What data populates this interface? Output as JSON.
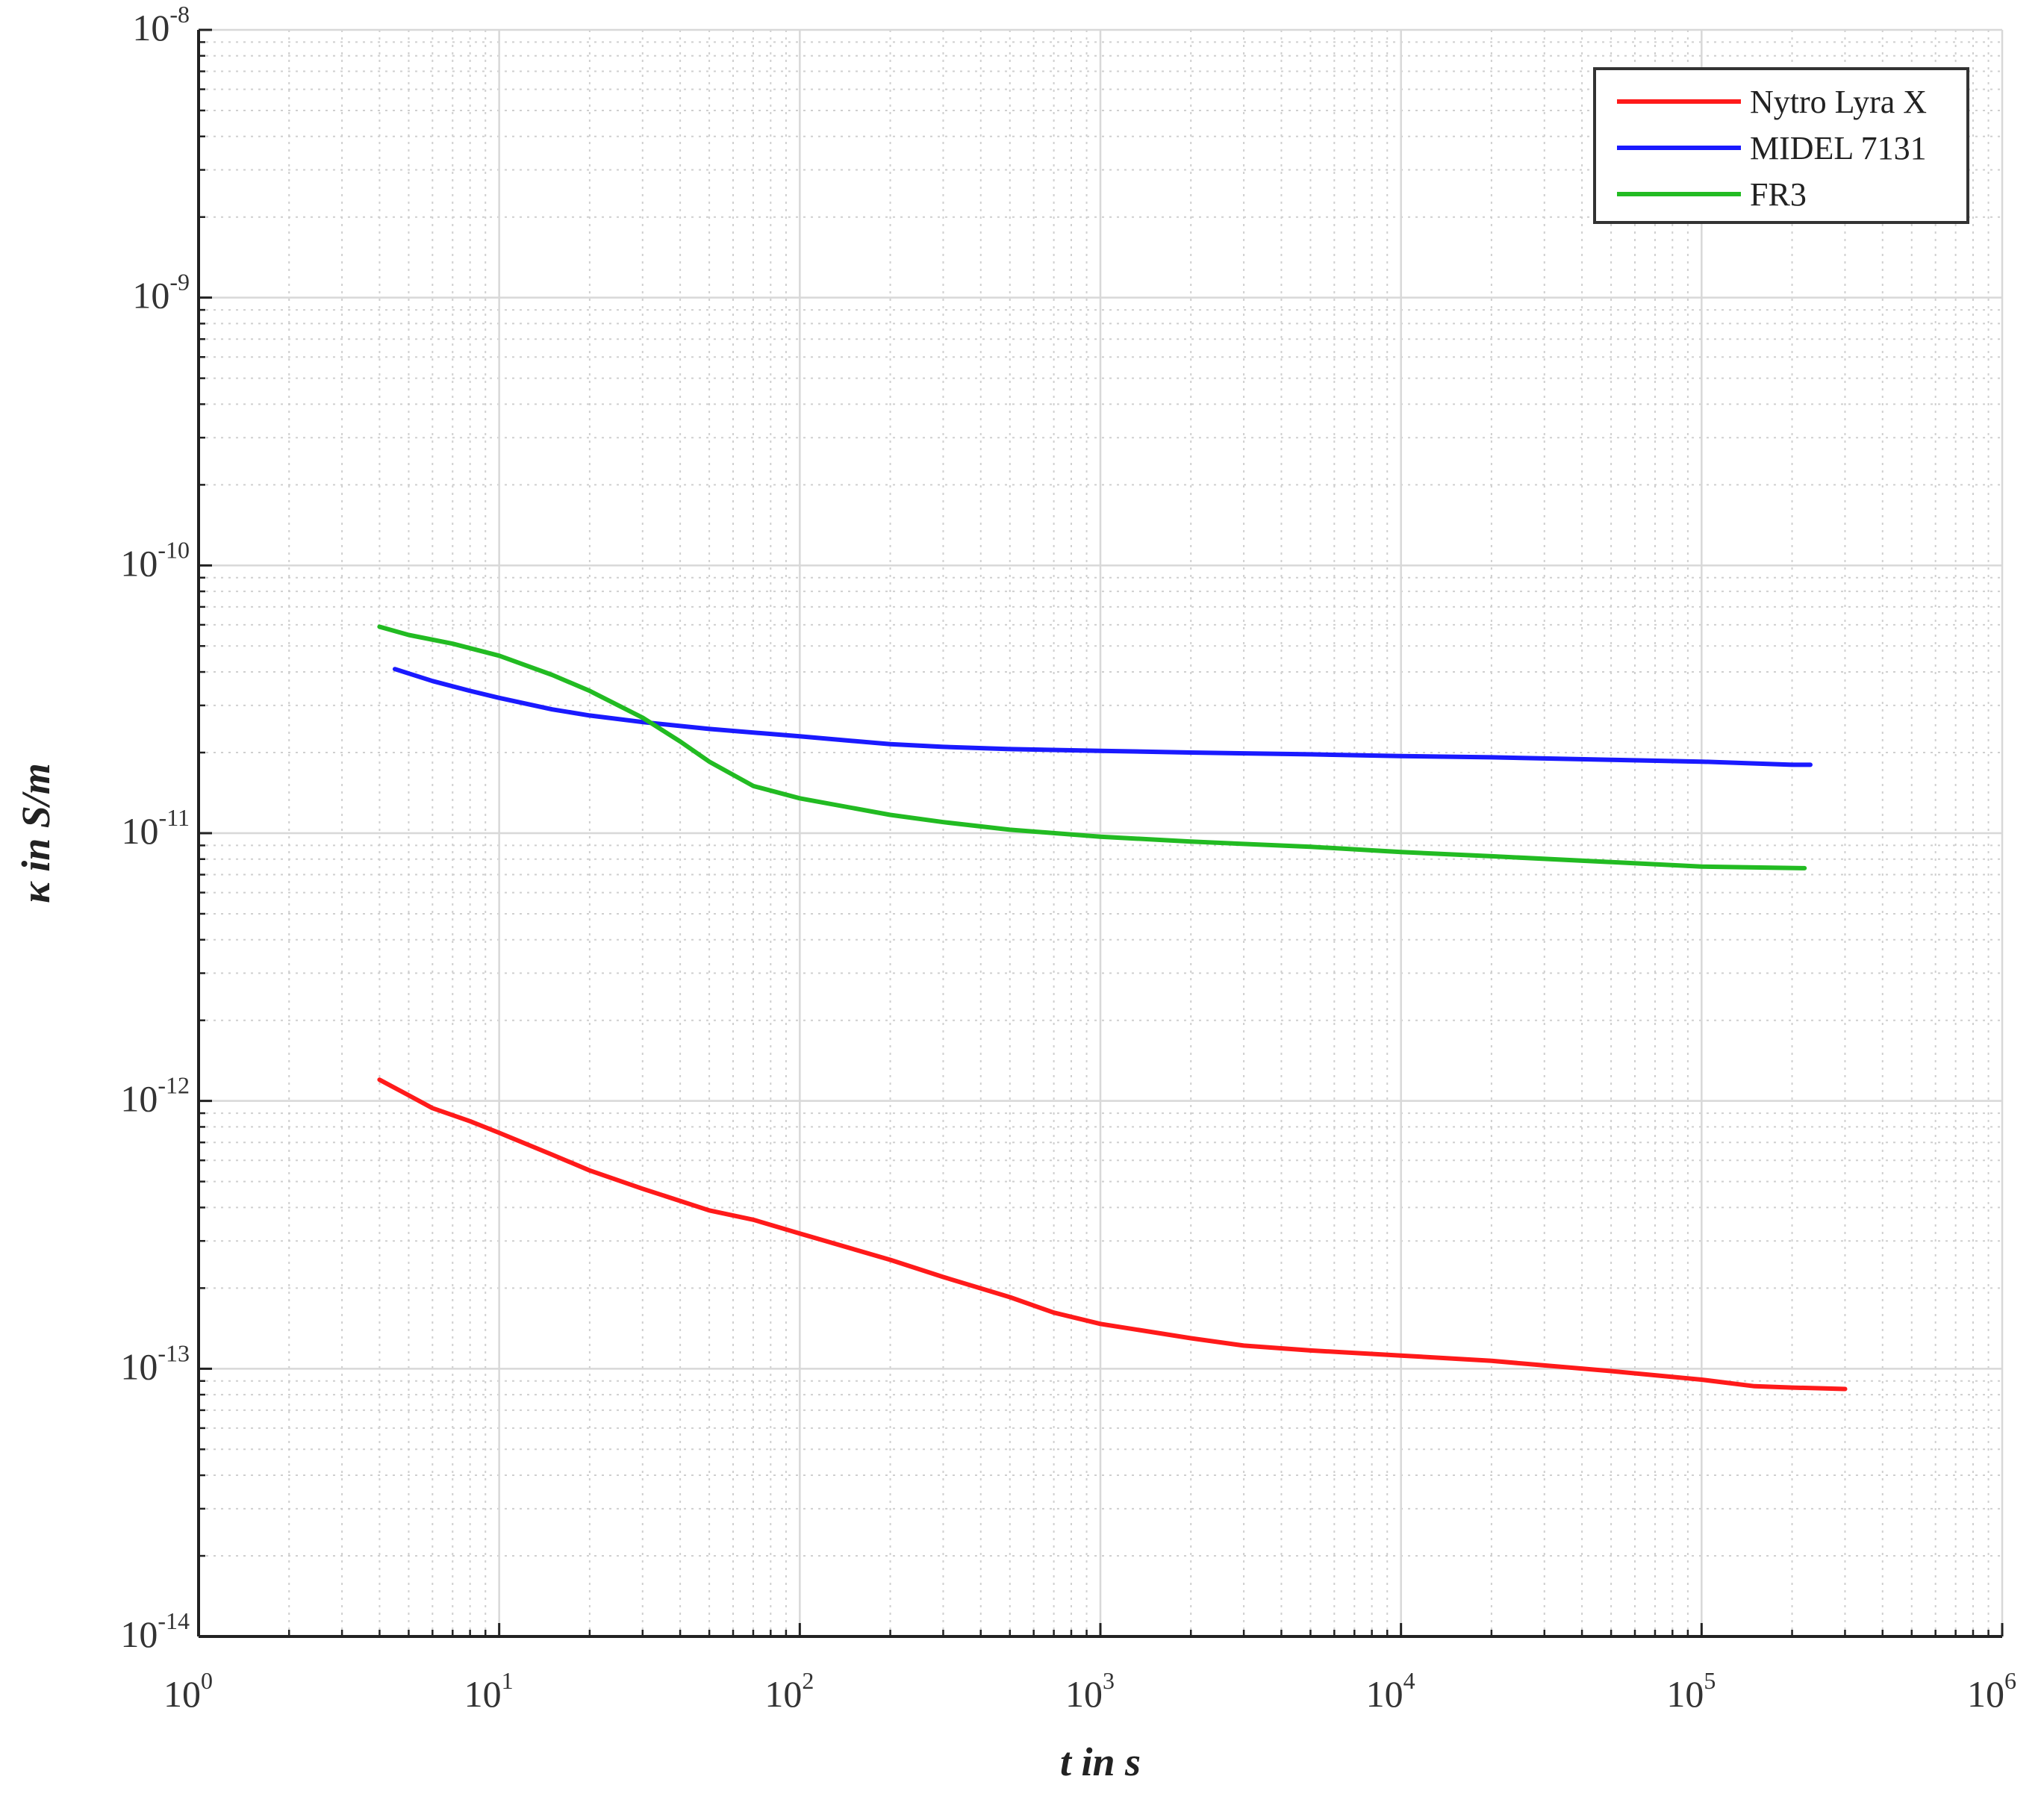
{
  "chart_data": {
    "type": "line",
    "xscale": "log",
    "yscale": "log",
    "xlim": [
      1,
      1000000
    ],
    "ylim": [
      1e-14,
      1e-08
    ],
    "xlabel": "t in s",
    "ylabel": "κ in S/m",
    "grid": true,
    "minor_grid": true,
    "legend_position": "top-right",
    "xticks": [
      {
        "base": "10",
        "exp": "0",
        "value": 1
      },
      {
        "base": "10",
        "exp": "1",
        "value": 10
      },
      {
        "base": "10",
        "exp": "2",
        "value": 100
      },
      {
        "base": "10",
        "exp": "3",
        "value": 1000
      },
      {
        "base": "10",
        "exp": "4",
        "value": 10000
      },
      {
        "base": "10",
        "exp": "5",
        "value": 100000
      },
      {
        "base": "10",
        "exp": "6",
        "value": 1000000
      }
    ],
    "yticks": [
      {
        "base": "10",
        "exp": "-14",
        "value": 1e-14
      },
      {
        "base": "10",
        "exp": "-13",
        "value": 1e-13
      },
      {
        "base": "10",
        "exp": "-12",
        "value": 1e-12
      },
      {
        "base": "10",
        "exp": "-11",
        "value": 1e-11
      },
      {
        "base": "10",
        "exp": "-10",
        "value": 1e-10
      },
      {
        "base": "10",
        "exp": "-9",
        "value": 1e-09
      },
      {
        "base": "10",
        "exp": "-8",
        "value": 1e-08
      }
    ],
    "series": [
      {
        "name": "Nytro Lyra X",
        "color": "#ff1a1a",
        "points": [
          [
            4,
            1.2e-12
          ],
          [
            5,
            1.05e-12
          ],
          [
            6,
            9.4e-13
          ],
          [
            8,
            8.4e-13
          ],
          [
            10,
            7.6e-13
          ],
          [
            15,
            6.3e-13
          ],
          [
            20,
            5.5e-13
          ],
          [
            30,
            4.7e-13
          ],
          [
            50,
            3.9e-13
          ],
          [
            70,
            3.6e-13
          ],
          [
            100,
            3.2e-13
          ],
          [
            200,
            2.55e-13
          ],
          [
            300,
            2.2e-13
          ],
          [
            500,
            1.85e-13
          ],
          [
            700,
            1.62e-13
          ],
          [
            1000,
            1.47e-13
          ],
          [
            2000,
            1.3e-13
          ],
          [
            3000,
            1.22e-13
          ],
          [
            5000,
            1.17e-13
          ],
          [
            10000,
            1.12e-13
          ],
          [
            20000,
            1.07e-13
          ],
          [
            50000,
            9.8e-14
          ],
          [
            100000,
            9.1e-14
          ],
          [
            150000,
            8.6e-14
          ],
          [
            200000,
            8.5e-14
          ],
          [
            300000,
            8.4e-14
          ]
        ]
      },
      {
        "name": "MIDEL 7131",
        "color": "#1a1aff",
        "points": [
          [
            4.5,
            4.1e-11
          ],
          [
            6,
            3.7e-11
          ],
          [
            8,
            3.4e-11
          ],
          [
            10,
            3.2e-11
          ],
          [
            15,
            2.9e-11
          ],
          [
            20,
            2.75e-11
          ],
          [
            30,
            2.6e-11
          ],
          [
            50,
            2.45e-11
          ],
          [
            100,
            2.3e-11
          ],
          [
            200,
            2.15e-11
          ],
          [
            300,
            2.1e-11
          ],
          [
            500,
            2.06e-11
          ],
          [
            1000,
            2.03e-11
          ],
          [
            2000,
            2e-11
          ],
          [
            5000,
            1.97e-11
          ],
          [
            10000,
            1.94e-11
          ],
          [
            20000,
            1.92e-11
          ],
          [
            50000,
            1.88e-11
          ],
          [
            100000,
            1.85e-11
          ],
          [
            200000,
            1.8e-11
          ],
          [
            230000,
            1.8e-11
          ]
        ]
      },
      {
        "name": "FR3",
        "color": "#22bb22",
        "points": [
          [
            4,
            5.9e-11
          ],
          [
            5,
            5.5e-11
          ],
          [
            7,
            5.1e-11
          ],
          [
            10,
            4.6e-11
          ],
          [
            15,
            3.9e-11
          ],
          [
            20,
            3.4e-11
          ],
          [
            30,
            2.7e-11
          ],
          [
            40,
            2.2e-11
          ],
          [
            50,
            1.85e-11
          ],
          [
            70,
            1.5e-11
          ],
          [
            100,
            1.35e-11
          ],
          [
            200,
            1.17e-11
          ],
          [
            300,
            1.1e-11
          ],
          [
            500,
            1.03e-11
          ],
          [
            1000,
            9.7e-12
          ],
          [
            2000,
            9.3e-12
          ],
          [
            5000,
            8.9e-12
          ],
          [
            10000,
            8.5e-12
          ],
          [
            20000,
            8.2e-12
          ],
          [
            50000,
            7.8e-12
          ],
          [
            100000,
            7.5e-12
          ],
          [
            220000,
            7.4e-12
          ]
        ]
      }
    ]
  }
}
